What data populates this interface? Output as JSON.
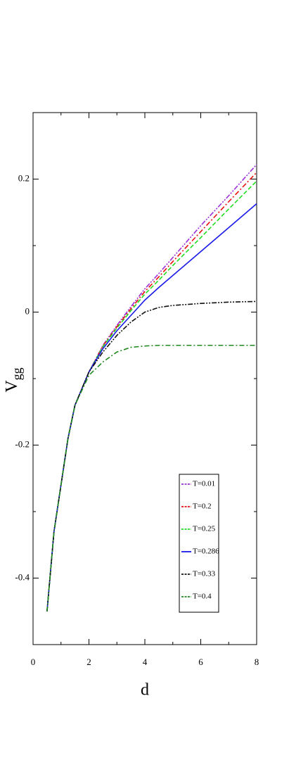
{
  "chart_data": {
    "type": "line",
    "x_label": "d",
    "y_label": "V",
    "y_label_subscript": "gg",
    "x": [
      0.5,
      0.75,
      1,
      1.25,
      1.5,
      2,
      2.5,
      3,
      3.5,
      4,
      4.5,
      5,
      6,
      7,
      8
    ],
    "series": [
      {
        "name": "T=0.01",
        "color": "#9b30d9",
        "dash": "7 2 2 2 2 2",
        "values": [
          -0.45,
          -0.33,
          -0.26,
          -0.19,
          -0.14,
          -0.09,
          -0.05,
          -0.02,
          0.008,
          0.035,
          0.058,
          0.082,
          0.13,
          0.175,
          0.222
        ]
      },
      {
        "name": "T=0.2",
        "color": "#e81010",
        "dash": "7 3 2 3",
        "values": [
          -0.45,
          -0.33,
          -0.26,
          -0.19,
          -0.14,
          -0.09,
          -0.051,
          -0.022,
          0.005,
          0.031,
          0.053,
          0.076,
          0.121,
          0.166,
          0.21
        ]
      },
      {
        "name": "T=0.25",
        "color": "#22dd22",
        "dash": "6 3",
        "values": [
          -0.45,
          -0.33,
          -0.26,
          -0.19,
          -0.14,
          -0.09,
          -0.052,
          -0.024,
          0.002,
          0.027,
          0.048,
          0.07,
          0.112,
          0.155,
          0.197
        ]
      },
      {
        "name": "T=0.286",
        "color": "#1a1ae6",
        "dash": "none",
        "values": [
          -0.45,
          -0.33,
          -0.26,
          -0.19,
          -0.14,
          -0.09,
          -0.055,
          -0.028,
          -0.005,
          0.018,
          0.037,
          0.055,
          0.091,
          0.127,
          0.163
        ]
      },
      {
        "name": "T=0.33",
        "color": "#111111",
        "dash": "7 2 2 2 2 2",
        "values": [
          -0.45,
          -0.33,
          -0.26,
          -0.19,
          -0.14,
          -0.09,
          -0.06,
          -0.035,
          -0.015,
          0.0,
          0.007,
          0.01,
          0.013,
          0.015,
          0.016
        ]
      },
      {
        "name": "T=0.4",
        "color": "#1f8a1f",
        "dash": "7 3 2 3",
        "values": [
          -0.45,
          -0.33,
          -0.26,
          -0.19,
          -0.14,
          -0.095,
          -0.075,
          -0.06,
          -0.053,
          -0.051,
          -0.05,
          -0.05,
          -0.05,
          -0.05,
          -0.05
        ]
      }
    ],
    "xlim": [
      0,
      8
    ],
    "ylim": [
      -0.5,
      0.3
    ],
    "xticks": [
      0,
      2,
      4,
      6,
      8
    ],
    "yticks": [
      -0.4,
      -0.2,
      0,
      0.2
    ],
    "xminor": [
      1,
      3,
      5,
      7
    ],
    "yminor": [
      -0.3,
      -0.1,
      0.1
    ],
    "grid": false,
    "legend": "lower right"
  }
}
